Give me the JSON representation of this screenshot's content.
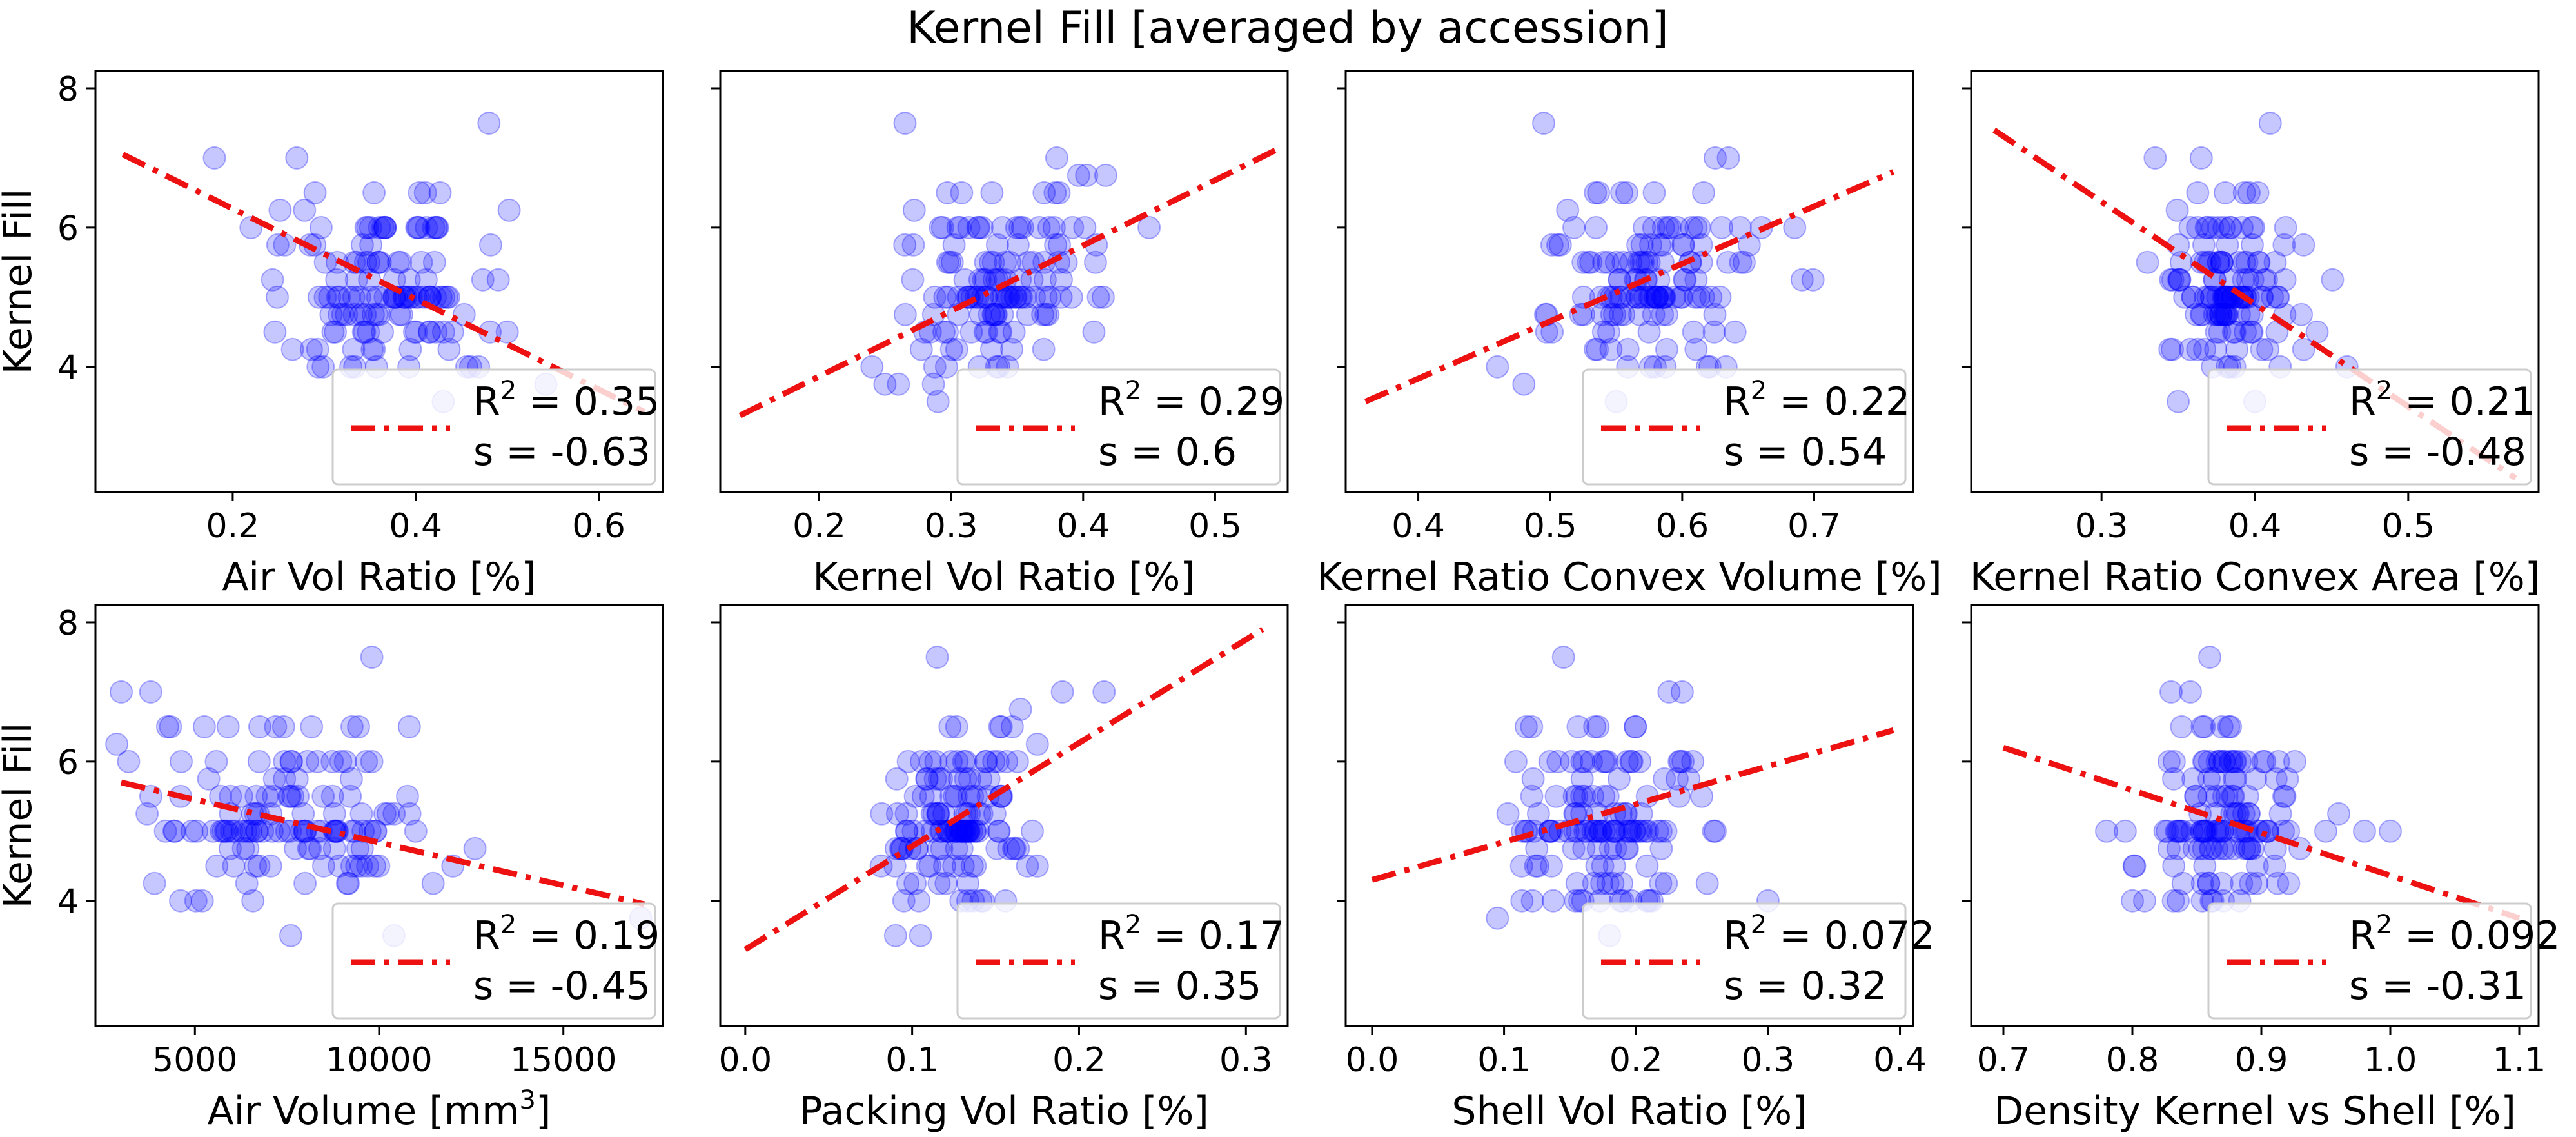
{
  "title": "Kernel Fill [averaged by accession]",
  "shared_ylabel": "Kernel Fill",
  "colors": {
    "points": "#0000ff",
    "fit": "#ee1111",
    "axis": "#000000",
    "legend_border": "#cccccc"
  },
  "legend_labels": {
    "r2_prefix": "R",
    "r2_sup": "2",
    "r2_eq": " = ",
    "s_label": "s   = "
  },
  "chart_data": [
    {
      "type": "scatter",
      "title": "",
      "xlabel": "Air Vol Ratio [%]",
      "ylabel": "Kernel Fill",
      "xlim": [
        0.05,
        0.67
      ],
      "ylim": [
        2.2,
        8.25
      ],
      "xticks": [
        0.2,
        0.4,
        0.6
      ],
      "xtick_labels": [
        "0.2",
        "0.4",
        "0.6"
      ],
      "yticks": [
        4,
        6,
        8
      ],
      "ytick_labels": [
        "4",
        "6",
        "8"
      ],
      "fit": {
        "x": [
          0.08,
          0.65
        ],
        "y": [
          7.05,
          3.35
        ]
      },
      "legend": {
        "r2": "0.35",
        "s": "-0.63",
        "loc": "lower right"
      },
      "points": {
        "x_center": 0.37,
        "x_spread": 0.055,
        "seed": 11,
        "extra": [
          [
            0.18,
            7.0
          ],
          [
            0.27,
            7.0
          ],
          [
            0.48,
            7.5
          ],
          [
            0.29,
            6.5
          ],
          [
            0.22,
            6.0
          ],
          [
            0.46,
            4.0
          ],
          [
            0.43,
            3.5
          ],
          [
            0.5,
            4.5
          ]
        ]
      }
    },
    {
      "type": "scatter",
      "title": "",
      "xlabel": "Kernel Vol Ratio [%]",
      "ylabel": "",
      "xlim": [
        0.125,
        0.555
      ],
      "ylim": [
        2.2,
        8.25
      ],
      "xticks": [
        0.2,
        0.3,
        0.4,
        0.5
      ],
      "xtick_labels": [
        "0.2",
        "0.3",
        "0.4",
        "0.5"
      ],
      "yticks": [
        4,
        6,
        8
      ],
      "ytick_labels": [
        "",
        "",
        ""
      ],
      "fit": {
        "x": [
          0.14,
          0.55
        ],
        "y": [
          3.3,
          7.15
        ]
      },
      "legend": {
        "r2": "0.29",
        "s": "0.6",
        "loc": "lower right"
      },
      "points": {
        "x_center": 0.34,
        "x_spread": 0.035,
        "seed": 23,
        "extra": [
          [
            0.265,
            7.5
          ],
          [
            0.38,
            7.0
          ],
          [
            0.45,
            6.0
          ],
          [
            0.26,
            3.75
          ],
          [
            0.29,
            3.5
          ],
          [
            0.24,
            4.0
          ],
          [
            0.41,
            5.75
          ],
          [
            0.28,
            4.5
          ]
        ]
      }
    },
    {
      "type": "scatter",
      "title": "",
      "xlabel": "Kernel Ratio Convex Volume [%]",
      "ylabel": "",
      "xlim": [
        0.345,
        0.775
      ],
      "ylim": [
        2.2,
        8.25
      ],
      "xticks": [
        0.4,
        0.5,
        0.6,
        0.7
      ],
      "xtick_labels": [
        "0.4",
        "0.5",
        "0.6",
        "0.7"
      ],
      "yticks": [
        4,
        6,
        8
      ],
      "ytick_labels": [
        "",
        "",
        ""
      ],
      "fit": {
        "x": [
          0.36,
          0.76
        ],
        "y": [
          3.5,
          6.8
        ]
      },
      "legend": {
        "r2": "0.22",
        "s": "0.54",
        "loc": "lower right"
      },
      "points": {
        "x_center": 0.575,
        "x_spread": 0.04,
        "seed": 37,
        "extra": [
          [
            0.495,
            7.5
          ],
          [
            0.625,
            7.0
          ],
          [
            0.635,
            7.0
          ],
          [
            0.46,
            4.0
          ],
          [
            0.48,
            3.75
          ],
          [
            0.66,
            6.0
          ],
          [
            0.64,
            4.5
          ],
          [
            0.55,
            3.5
          ]
        ]
      }
    },
    {
      "type": "scatter",
      "title": "",
      "xlabel": "Kernel Ratio Convex Area [%]",
      "ylabel": "",
      "xlim": [
        0.215,
        0.585
      ],
      "ylim": [
        2.2,
        8.25
      ],
      "xticks": [
        0.3,
        0.4,
        0.5
      ],
      "xtick_labels": [
        "0.3",
        "0.4",
        "0.5"
      ],
      "yticks": [
        4,
        6,
        8
      ],
      "ytick_labels": [
        "",
        "",
        ""
      ],
      "fit": {
        "x": [
          0.23,
          0.57
        ],
        "y": [
          7.4,
          2.4
        ]
      },
      "legend": {
        "r2": "0.21",
        "s": "-0.48",
        "loc": "lower right"
      },
      "points": {
        "x_center": 0.385,
        "x_spread": 0.02,
        "seed": 41,
        "extra": [
          [
            0.41,
            7.5
          ],
          [
            0.335,
            7.0
          ],
          [
            0.365,
            7.0
          ],
          [
            0.42,
            6.0
          ],
          [
            0.33,
            5.5
          ],
          [
            0.46,
            4.0
          ],
          [
            0.35,
            3.5
          ],
          [
            0.4,
            3.5
          ]
        ]
      }
    },
    {
      "type": "scatter",
      "title": "",
      "xlabel": "Air Volume [mm",
      "xlabel_sup": "3",
      "xlabel_tail": "]",
      "ylabel": "Kernel Fill",
      "xlim": [
        2300,
        17700
      ],
      "ylim": [
        2.2,
        8.25
      ],
      "xticks": [
        5000,
        10000,
        15000
      ],
      "xtick_labels": [
        "5000",
        "10000",
        "15000"
      ],
      "yticks": [
        4,
        6,
        8
      ],
      "ytick_labels": [
        "4",
        "6",
        "8"
      ],
      "fit": {
        "x": [
          3000,
          17200
        ],
        "y": [
          5.7,
          3.95
        ]
      },
      "legend": {
        "r2": "0.19",
        "s": "-0.45",
        "loc": "lower right"
      },
      "points": {
        "x_center": 7000,
        "x_spread": 1900,
        "seed": 53,
        "extra": [
          [
            3000,
            7.0
          ],
          [
            3800,
            7.0
          ],
          [
            9800,
            7.5
          ],
          [
            5900,
            6.5
          ],
          [
            12600,
            4.75
          ],
          [
            12000,
            4.5
          ],
          [
            17100,
            3.75
          ],
          [
            7600,
            3.5
          ],
          [
            10400,
            3.5
          ],
          [
            9800,
            6.0
          ],
          [
            5200,
            4.0
          ],
          [
            3200,
            6.0
          ]
        ]
      }
    },
    {
      "type": "scatter",
      "title": "",
      "xlabel": "Packing Vol Ratio [%]",
      "ylabel": "",
      "xlim": [
        -0.015,
        0.325
      ],
      "ylim": [
        2.2,
        8.25
      ],
      "xticks": [
        0.0,
        0.1,
        0.2,
        0.3
      ],
      "xtick_labels": [
        "0.0",
        "0.1",
        "0.2",
        "0.3"
      ],
      "yticks": [
        4,
        6,
        8
      ],
      "ytick_labels": [
        "",
        "",
        ""
      ],
      "fit": {
        "x": [
          0.0,
          0.31
        ],
        "y": [
          3.3,
          7.9
        ]
      },
      "legend": {
        "r2": "0.17",
        "s": "0.35",
        "loc": "lower right"
      },
      "points": {
        "x_center": 0.13,
        "x_spread": 0.018,
        "seed": 67,
        "extra": [
          [
            0.115,
            7.5
          ],
          [
            0.19,
            7.0
          ],
          [
            0.215,
            7.0
          ],
          [
            0.175,
            6.25
          ],
          [
            0.16,
            6.5
          ],
          [
            0.095,
            4.0
          ],
          [
            0.09,
            3.5
          ],
          [
            0.105,
            3.5
          ],
          [
            0.175,
            4.5
          ]
        ]
      }
    },
    {
      "type": "scatter",
      "title": "",
      "xlabel": "Shell Vol Ratio [%]",
      "ylabel": "",
      "xlim": [
        -0.02,
        0.41
      ],
      "ylim": [
        2.2,
        8.25
      ],
      "xticks": [
        0.0,
        0.1,
        0.2,
        0.3,
        0.4
      ],
      "xtick_labels": [
        "0.0",
        "0.1",
        "0.2",
        "0.3",
        "0.4"
      ],
      "yticks": [
        4,
        6,
        8
      ],
      "ytick_labels": [
        "",
        "",
        ""
      ],
      "fit": {
        "x": [
          0.0,
          0.395
        ],
        "y": [
          4.3,
          6.45
        ]
      },
      "legend": {
        "r2": "0.072",
        "s": "0.32",
        "loc": "lower right"
      },
      "points": {
        "x_center": 0.17,
        "x_spread": 0.032,
        "seed": 79,
        "extra": [
          [
            0.145,
            7.5
          ],
          [
            0.225,
            7.0
          ],
          [
            0.235,
            7.0
          ],
          [
            0.095,
            3.75
          ],
          [
            0.3,
            4.0
          ],
          [
            0.24,
            5.75
          ],
          [
            0.21,
            4.0
          ],
          [
            0.18,
            3.5
          ]
        ]
      }
    },
    {
      "type": "scatter",
      "title": "",
      "xlabel": "Density Kernel vs Shell [%]",
      "ylabel": "",
      "xlim": [
        0.675,
        1.115
      ],
      "ylim": [
        2.2,
        8.25
      ],
      "xticks": [
        0.7,
        0.8,
        0.9,
        1.0,
        1.1
      ],
      "xtick_labels": [
        "0.7",
        "0.8",
        "0.9",
        "1.0",
        "1.1"
      ],
      "yticks": [
        4,
        6,
        8
      ],
      "ytick_labels": [
        "",
        "",
        ""
      ],
      "fit": {
        "x": [
          0.7,
          1.1
        ],
        "y": [
          6.2,
          3.75
        ]
      },
      "legend": {
        "r2": "0.092",
        "s": "-0.31",
        "loc": "lower right"
      },
      "points": {
        "x_center": 0.87,
        "x_spread": 0.03,
        "seed": 97,
        "extra": [
          [
            0.86,
            7.5
          ],
          [
            0.83,
            7.0
          ],
          [
            0.845,
            7.0
          ],
          [
            1.0,
            5.0
          ],
          [
            0.98,
            5.0
          ],
          [
            0.96,
            5.25
          ],
          [
            0.8,
            4.0
          ],
          [
            0.78,
            5.0
          ],
          [
            0.95,
            5.0
          ],
          [
            0.93,
            4.75
          ]
        ]
      }
    }
  ]
}
